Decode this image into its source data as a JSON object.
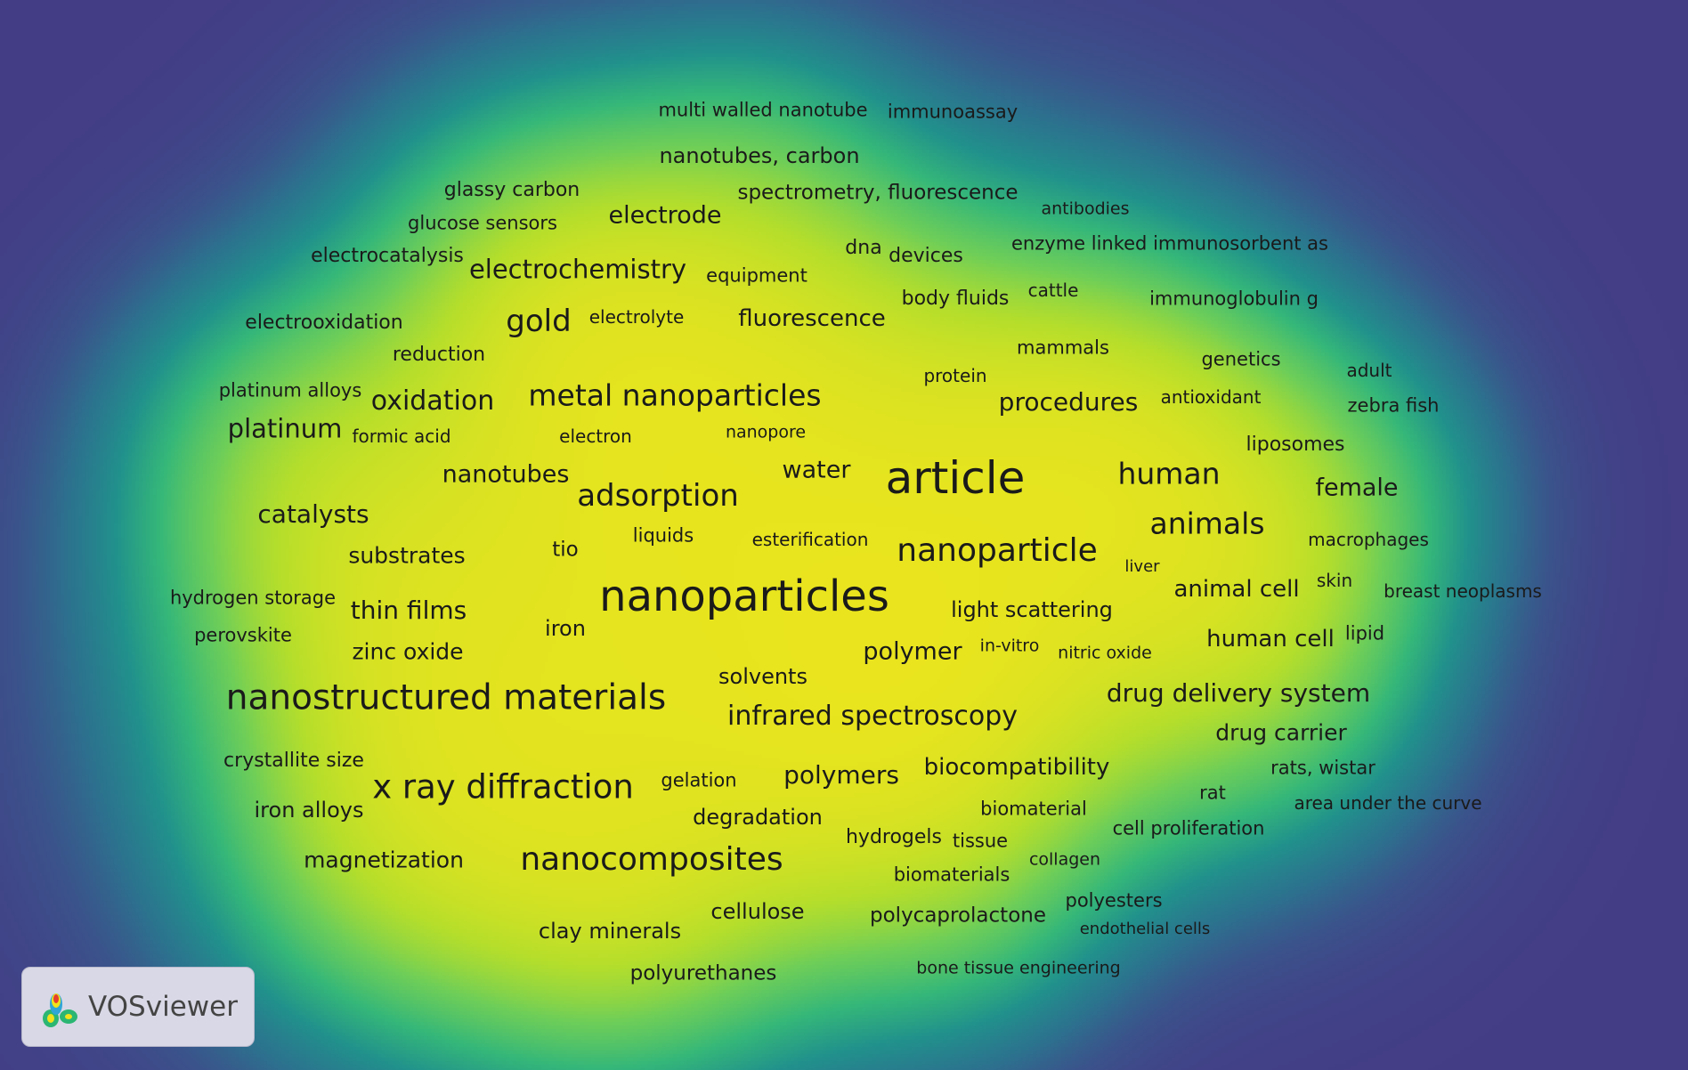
{
  "colors": {
    "background": "#433d86",
    "density_low": "#2c8f8c",
    "density_mid": "#5cc863",
    "density_high": "#f0e51c"
  },
  "logo": {
    "text": "VOSviewer",
    "icon": "vosviewer-logo-icon"
  },
  "keywords": [
    {
      "label": "multi walled nanotube",
      "size": 21
    },
    {
      "label": "immunoassay",
      "size": 21
    },
    {
      "label": "nanotubes, carbon",
      "size": 24
    },
    {
      "label": "glassy carbon",
      "size": 22
    },
    {
      "label": "spectrometry, fluorescence",
      "size": 23
    },
    {
      "label": "electrode",
      "size": 27
    },
    {
      "label": "antibodies",
      "size": 19
    },
    {
      "label": "glucose sensors",
      "size": 21
    },
    {
      "label": "enzyme linked immunosorbent as",
      "size": 21
    },
    {
      "label": "electrocatalysis",
      "size": 22
    },
    {
      "label": "electrochemistry",
      "size": 29
    },
    {
      "label": "dna",
      "size": 22
    },
    {
      "label": "devices",
      "size": 22
    },
    {
      "label": "equipment",
      "size": 21
    },
    {
      "label": "cattle",
      "size": 20
    },
    {
      "label": "body fluids",
      "size": 22
    },
    {
      "label": "immunoglobulin g",
      "size": 21
    },
    {
      "label": "electrooxidation",
      "size": 22
    },
    {
      "label": "gold",
      "size": 34
    },
    {
      "label": "electrolyte",
      "size": 20
    },
    {
      "label": "fluorescence",
      "size": 26
    },
    {
      "label": "mammals",
      "size": 21
    },
    {
      "label": "reduction",
      "size": 22
    },
    {
      "label": "genetics",
      "size": 21
    },
    {
      "label": "protein",
      "size": 20
    },
    {
      "label": "adult",
      "size": 20
    },
    {
      "label": "platinum alloys",
      "size": 21
    },
    {
      "label": "metal nanoparticles",
      "size": 33
    },
    {
      "label": "oxidation",
      "size": 30
    },
    {
      "label": "procedures",
      "size": 28
    },
    {
      "label": "antioxidant",
      "size": 20
    },
    {
      "label": "zebra fish",
      "size": 21
    },
    {
      "label": "platinum",
      "size": 29
    },
    {
      "label": "formic acid",
      "size": 20
    },
    {
      "label": "electron",
      "size": 20
    },
    {
      "label": "nanopore",
      "size": 19
    },
    {
      "label": "liposomes",
      "size": 22
    },
    {
      "label": "nanotubes",
      "size": 27
    },
    {
      "label": "water",
      "size": 27
    },
    {
      "label": "article",
      "size": 50
    },
    {
      "label": "human",
      "size": 33
    },
    {
      "label": "female",
      "size": 27
    },
    {
      "label": "adsorption",
      "size": 34
    },
    {
      "label": "catalysts",
      "size": 28
    },
    {
      "label": "animals",
      "size": 33
    },
    {
      "label": "liquids",
      "size": 21
    },
    {
      "label": "esterification",
      "size": 20
    },
    {
      "label": "macrophages",
      "size": 20
    },
    {
      "label": "tio",
      "size": 23
    },
    {
      "label": "substrates",
      "size": 25
    },
    {
      "label": "nanoparticle",
      "size": 36
    },
    {
      "label": "liver",
      "size": 18
    },
    {
      "label": "skin",
      "size": 20
    },
    {
      "label": "nanoparticles",
      "size": 48
    },
    {
      "label": "animal cell",
      "size": 26
    },
    {
      "label": "breast neoplasms",
      "size": 20
    },
    {
      "label": "hydrogen storage",
      "size": 21
    },
    {
      "label": "thin films",
      "size": 28
    },
    {
      "label": "light scattering",
      "size": 24
    },
    {
      "label": "perovskite",
      "size": 21
    },
    {
      "label": "iron",
      "size": 24
    },
    {
      "label": "human cell",
      "size": 26
    },
    {
      "label": "lipid",
      "size": 21
    },
    {
      "label": "polymer",
      "size": 27
    },
    {
      "label": "in-vitro",
      "size": 19
    },
    {
      "label": "nitric oxide",
      "size": 19
    },
    {
      "label": "zinc oxide",
      "size": 25
    },
    {
      "label": "solvents",
      "size": 24
    },
    {
      "label": "nanostructured materials",
      "size": 39
    },
    {
      "label": "drug delivery system",
      "size": 28
    },
    {
      "label": "infrared spectroscopy",
      "size": 30
    },
    {
      "label": "drug carrier",
      "size": 25
    },
    {
      "label": "crystallite size",
      "size": 22
    },
    {
      "label": "rats, wistar",
      "size": 21
    },
    {
      "label": "biocompatibility",
      "size": 26
    },
    {
      "label": "polymers",
      "size": 28
    },
    {
      "label": "gelation",
      "size": 21
    },
    {
      "label": "x ray diffraction",
      "size": 37
    },
    {
      "label": "rat",
      "size": 21
    },
    {
      "label": "area under the curve",
      "size": 20
    },
    {
      "label": "iron alloys",
      "size": 24
    },
    {
      "label": "biomaterial",
      "size": 21
    },
    {
      "label": "degradation",
      "size": 24
    },
    {
      "label": "cell proliferation",
      "size": 21
    },
    {
      "label": "hydrogels",
      "size": 22
    },
    {
      "label": "tissue",
      "size": 21
    },
    {
      "label": "magnetization",
      "size": 25
    },
    {
      "label": "nanocomposites",
      "size": 36
    },
    {
      "label": "collagen",
      "size": 19
    },
    {
      "label": "biomaterials",
      "size": 21
    },
    {
      "label": "polyesters",
      "size": 21
    },
    {
      "label": "cellulose",
      "size": 24
    },
    {
      "label": "polycaprolactone",
      "size": 23
    },
    {
      "label": "endothelial cells",
      "size": 18
    },
    {
      "label": "clay minerals",
      "size": 24
    },
    {
      "label": "bone tissue engineering",
      "size": 19
    },
    {
      "label": "polyurethanes",
      "size": 23
    }
  ]
}
